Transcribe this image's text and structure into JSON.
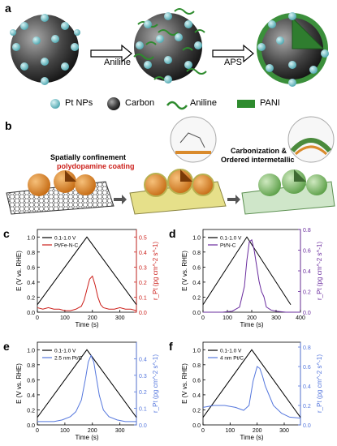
{
  "panel_a": {
    "label": "a",
    "arrow1": "Aniline",
    "arrow2": "APS",
    "legend": [
      "Pt NPs",
      "Carbon",
      "Aniline",
      "PANI"
    ]
  },
  "panel_b": {
    "label": "b",
    "text1_line1": "Spatially confinement",
    "text1_line2": "polydopamine coating",
    "text2_line1": "Carbonization &",
    "text2_line2": "Ordered intermetallic"
  },
  "colors": {
    "pt": "#7fc8cf",
    "carbon": "#555555",
    "pani": "#2e8b2e",
    "red": "#cc1f1a",
    "purple": "#6a2c9e",
    "blue": "#5577dd",
    "pdcoat": "#d98a2b"
  },
  "chart_data": [
    {
      "panel": "c",
      "type": "line",
      "xlabel": "Time (s)",
      "ylabel_left": "E (V vs. RHE)",
      "ylabel_right": "r_Pt (pg cm^-2 s^-1)",
      "xlim": [
        0,
        360
      ],
      "ylim_left": [
        0,
        1.1
      ],
      "ylim_right": [
        0,
        0.55
      ],
      "xticks": [
        0,
        100,
        200,
        300
      ],
      "yticks_left": [
        "0.0",
        "0.2",
        "0.4",
        "0.6",
        "0.8",
        "1.0"
      ],
      "yticks_right": [
        "0.0",
        "0.1",
        "0.2",
        "0.3",
        "0.4",
        "0.5"
      ],
      "legend": [
        "0.1-1.0 V",
        "Pt/Fe-N-C"
      ],
      "legend_colors": [
        "#000000",
        "#cc1f1a"
      ],
      "potential": {
        "x": [
          0,
          180,
          360
        ],
        "y": [
          0.1,
          1.0,
          0.1
        ]
      },
      "series": {
        "color": "#cc1f1a",
        "x": [
          0,
          20,
          40,
          60,
          80,
          100,
          120,
          140,
          160,
          170,
          180,
          190,
          200,
          210,
          220,
          230,
          240,
          260,
          280,
          300,
          320,
          340,
          360
        ],
        "y": [
          0.03,
          0.02,
          0.03,
          0.02,
          0.02,
          0.01,
          0.01,
          0.02,
          0.04,
          0.08,
          0.15,
          0.22,
          0.24,
          0.18,
          0.1,
          0.05,
          0.03,
          0.02,
          0.02,
          0.03,
          0.02,
          0.02,
          0.01
        ]
      }
    },
    {
      "panel": "d",
      "type": "line",
      "xlabel": "Time (s)",
      "ylabel_left": "E (V vs. RHE)",
      "ylabel_right": "r_Pt (pg cm^-2 s^-1)",
      "xlim": [
        0,
        400
      ],
      "ylim_left": [
        0,
        1.1
      ],
      "ylim_right": [
        0,
        0.8
      ],
      "xticks": [
        0,
        100,
        200,
        300,
        400
      ],
      "yticks_left": [
        "0.0",
        "0.2",
        "0.4",
        "0.6",
        "0.8",
        "1.0"
      ],
      "yticks_right": [
        "0.0",
        "0.2",
        "0.4",
        "0.6",
        "0.8"
      ],
      "legend": [
        "0.1-1.0 V",
        "Pt/N-C"
      ],
      "legend_colors": [
        "#000000",
        "#6a2c9e"
      ],
      "potential": {
        "x": [
          0,
          180,
          360
        ],
        "y": [
          0.1,
          1.0,
          0.1
        ]
      },
      "series": {
        "color": "#6a2c9e",
        "x": [
          0,
          40,
          80,
          120,
          150,
          170,
          180,
          190,
          200,
          210,
          220,
          230,
          240,
          250,
          260,
          280,
          300,
          340,
          380,
          400
        ],
        "y": [
          0.0,
          0.0,
          0.0,
          0.01,
          0.05,
          0.25,
          0.5,
          0.68,
          0.7,
          0.6,
          0.45,
          0.3,
          0.2,
          0.15,
          0.05,
          0.02,
          0.01,
          0.0,
          0.0,
          0.0
        ]
      }
    },
    {
      "panel": "e",
      "type": "line",
      "xlabel": "Time (s)",
      "ylabel_left": "E (V vs. RHE)",
      "ylabel_right": "r_Pt (pg cm^-2 s^-1)",
      "xlim": [
        0,
        360
      ],
      "ylim_left": [
        0,
        1.1
      ],
      "ylim_right": [
        0,
        0.5
      ],
      "xticks": [
        0,
        100,
        200,
        300
      ],
      "yticks_left": [
        "0.0",
        "0.2",
        "0.4",
        "0.6",
        "0.8",
        "1.0"
      ],
      "yticks_right": [
        "0.0",
        "0.1",
        "0.2",
        "0.3",
        "0.4"
      ],
      "legend": [
        "0.1-1.0 V",
        "2.5 nm Pt/C"
      ],
      "legend_colors": [
        "#000000",
        "#5577dd"
      ],
      "potential": {
        "x": [
          0,
          180,
          360
        ],
        "y": [
          0.1,
          1.0,
          0.1
        ]
      },
      "series": {
        "color": "#5577dd",
        "x": [
          0,
          30,
          60,
          90,
          120,
          140,
          160,
          175,
          185,
          195,
          205,
          215,
          225,
          240,
          260,
          290,
          320,
          360
        ],
        "y": [
          0.02,
          0.02,
          0.02,
          0.03,
          0.05,
          0.08,
          0.15,
          0.28,
          0.38,
          0.42,
          0.38,
          0.28,
          0.18,
          0.09,
          0.05,
          0.03,
          0.02,
          0.02
        ]
      }
    },
    {
      "panel": "f",
      "type": "line",
      "xlabel": "Time (s)",
      "ylabel_left": "E (V vs. RHE)",
      "ylabel_right": "r_Pt (pg cm^-2 s^-1)",
      "xlim": [
        0,
        360
      ],
      "ylim_left": [
        0,
        1.1
      ],
      "ylim_right": [
        0,
        0.85
      ],
      "xticks": [
        0,
        100,
        200,
        300
      ],
      "yticks_left": [
        "0.0",
        "0.2",
        "0.4",
        "0.6",
        "0.8",
        "1.0"
      ],
      "yticks_right": [
        "0.0",
        "0.2",
        "0.4",
        "0.6",
        "0.8"
      ],
      "legend": [
        "0.1-1.0 V",
        "4 nm Pt/C"
      ],
      "legend_colors": [
        "#000000",
        "#5577dd"
      ],
      "potential": {
        "x": [
          0,
          180,
          360
        ],
        "y": [
          0.1,
          1.0,
          0.1
        ]
      },
      "series": {
        "color": "#5577dd",
        "x": [
          0,
          40,
          80,
          120,
          150,
          170,
          185,
          200,
          210,
          220,
          230,
          245,
          260,
          290,
          320,
          360
        ],
        "y": [
          0.18,
          0.2,
          0.2,
          0.18,
          0.15,
          0.2,
          0.45,
          0.6,
          0.58,
          0.5,
          0.4,
          0.3,
          0.2,
          0.12,
          0.08,
          0.07
        ]
      }
    }
  ]
}
